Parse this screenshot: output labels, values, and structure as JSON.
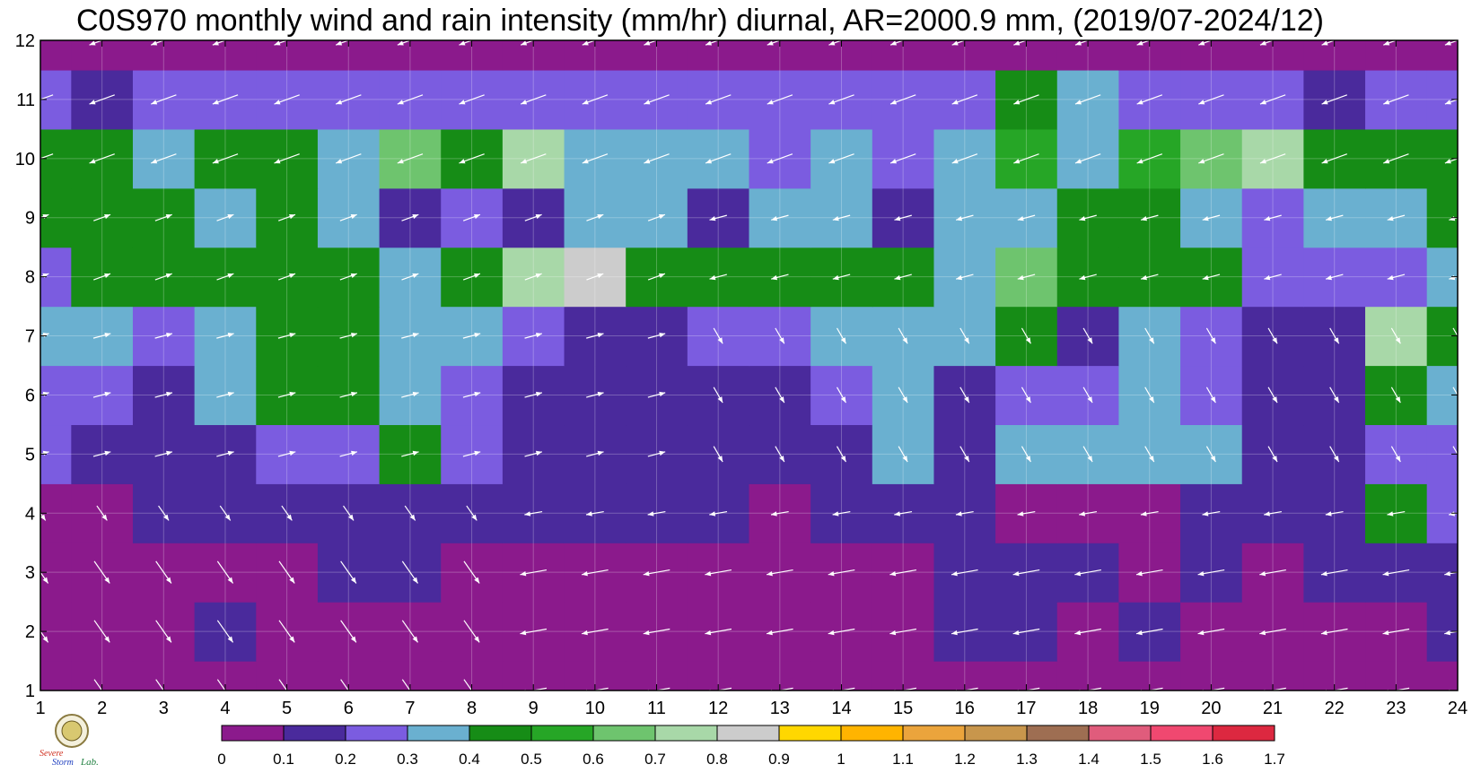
{
  "chart_data": {
    "type": "heatmap",
    "title": "C0S970 monthly wind and rain intensity (mm/hr) diurnal, AR=2000.9 mm, (2019/07-2024/12)",
    "xlabel": "",
    "ylabel": "",
    "x_ticks": [
      "1",
      "2",
      "3",
      "4",
      "5",
      "6",
      "7",
      "8",
      "9",
      "10",
      "11",
      "12",
      "13",
      "14",
      "15",
      "16",
      "17",
      "18",
      "19",
      "20",
      "21",
      "22",
      "23",
      "24"
    ],
    "y_ticks": [
      "1",
      "2",
      "3",
      "4",
      "5",
      "6",
      "7",
      "8",
      "9",
      "10",
      "11",
      "12"
    ],
    "xlim": [
      1,
      24
    ],
    "ylim": [
      1,
      12
    ],
    "x_meaning": "hour of day",
    "y_meaning": "month",
    "z_unit": "mm/hr",
    "grid": true,
    "colorbar": {
      "levels": [
        0,
        0.1,
        0.2,
        0.3,
        0.4,
        0.5,
        0.6,
        0.7,
        0.8,
        0.9,
        1,
        1.1,
        1.2,
        1.3,
        1.4,
        1.5,
        1.6,
        1.7
      ],
      "labels": [
        "0",
        "0.1",
        "0.2",
        "0.3",
        "0.4",
        "0.5",
        "0.6",
        "0.7",
        "0.8",
        "0.9",
        "1",
        "1.1",
        "1.2",
        "1.3",
        "1.4",
        "1.5",
        "1.6",
        "1.7"
      ],
      "colors": [
        "#8b1a8c",
        "#4a2a9c",
        "#7b5ce0",
        "#6ab0d0",
        "#168c16",
        "#26a626",
        "#6ec46e",
        "#a8d8a8",
        "#cccccc",
        "#ffd700",
        "#ffb400",
        "#eba43c",
        "#c8964c",
        "#9e6e52",
        "#e05c7c",
        "#f04870",
        "#dc2840"
      ]
    },
    "rain_grid_monthly_by_hour": [
      [
        0.05,
        0.05,
        0.05,
        0.05,
        0.05,
        0.05,
        0.05,
        0.05,
        0.05,
        0.05,
        0.05,
        0.05,
        0.05,
        0.05,
        0.05,
        0.05,
        0.05,
        0.05,
        0.05,
        0.05,
        0.05,
        0.05,
        0.05,
        0.05
      ],
      [
        0.05,
        0.05,
        0.05,
        0.12,
        0.05,
        0.05,
        0.05,
        0.05,
        0.05,
        0.05,
        0.05,
        0.05,
        0.05,
        0.05,
        0.05,
        0.12,
        0.12,
        0.05,
        0.12,
        0.05,
        0.05,
        0.05,
        0.05,
        0.15
      ],
      [
        0.05,
        0.05,
        0.05,
        0.05,
        0.05,
        0.15,
        0.15,
        0.05,
        0.05,
        0.05,
        0.05,
        0.05,
        0.05,
        0.05,
        0.05,
        0.15,
        0.15,
        0.15,
        0.05,
        0.15,
        0.05,
        0.12,
        0.15,
        0.15
      ],
      [
        0.08,
        0.05,
        0.15,
        0.15,
        0.15,
        0.15,
        0.15,
        0.15,
        0.15,
        0.15,
        0.15,
        0.15,
        0.08,
        0.15,
        0.15,
        0.15,
        0.05,
        0.05,
        0.05,
        0.15,
        0.15,
        0.15,
        0.45,
        0.25
      ],
      [
        0.25,
        0.15,
        0.15,
        0.18,
        0.25,
        0.25,
        0.45,
        0.25,
        0.15,
        0.15,
        0.15,
        0.15,
        0.15,
        0.15,
        0.35,
        0.15,
        0.35,
        0.35,
        0.35,
        0.35,
        0.15,
        0.15,
        0.25,
        0.25
      ],
      [
        0.25,
        0.25,
        0.15,
        0.35,
        0.45,
        0.45,
        0.35,
        0.25,
        0.15,
        0.15,
        0.15,
        0.15,
        0.15,
        0.25,
        0.35,
        0.15,
        0.25,
        0.25,
        0.35,
        0.25,
        0.15,
        0.15,
        0.45,
        0.35
      ],
      [
        0.35,
        0.35,
        0.25,
        0.35,
        0.45,
        0.45,
        0.35,
        0.35,
        0.25,
        0.15,
        0.15,
        0.25,
        0.25,
        0.35,
        0.35,
        0.35,
        0.45,
        0.15,
        0.35,
        0.25,
        0.15,
        0.15,
        0.75,
        0.45
      ],
      [
        0.25,
        0.45,
        0.45,
        0.45,
        0.45,
        0.45,
        0.35,
        0.45,
        0.75,
        0.85,
        0.45,
        0.45,
        0.45,
        0.45,
        0.45,
        0.35,
        0.65,
        0.45,
        0.45,
        0.45,
        0.25,
        0.25,
        0.25,
        0.35
      ],
      [
        0.45,
        0.45,
        0.45,
        0.35,
        0.45,
        0.35,
        0.15,
        0.25,
        0.15,
        0.35,
        0.35,
        0.15,
        0.35,
        0.35,
        0.15,
        0.35,
        0.35,
        0.45,
        0.45,
        0.35,
        0.25,
        0.35,
        0.35,
        0.45
      ],
      [
        0.45,
        0.45,
        0.35,
        0.45,
        0.45,
        0.35,
        0.65,
        0.45,
        0.75,
        0.35,
        0.35,
        0.35,
        0.25,
        0.35,
        0.25,
        0.35,
        0.55,
        0.35,
        0.55,
        0.65,
        0.75,
        0.45,
        0.45,
        0.45
      ],
      [
        0.25,
        0.15,
        0.25,
        0.25,
        0.25,
        0.25,
        0.25,
        0.25,
        0.25,
        0.25,
        0.25,
        0.25,
        0.25,
        0.25,
        0.25,
        0.25,
        0.45,
        0.35,
        0.25,
        0.25,
        0.25,
        0.15,
        0.25,
        0.25
      ],
      [
        0.05,
        0.05,
        0.05,
        0.05,
        0.05,
        0.05,
        0.05,
        0.05,
        0.05,
        0.05,
        0.05,
        0.05,
        0.05,
        0.05,
        0.05,
        0.05,
        0.05,
        0.05,
        0.05,
        0.05,
        0.05,
        0.05,
        0.05,
        0.05
      ]
    ],
    "wind_arrows_description": "white vectors per month/hour: westward in months 10-12, north-westward to south-eastward in months 1-4, mixed in warm season"
  },
  "logo": {
    "text_top": "Severe",
    "text_bottom": "Storm",
    "text_suffix": "Lab."
  }
}
